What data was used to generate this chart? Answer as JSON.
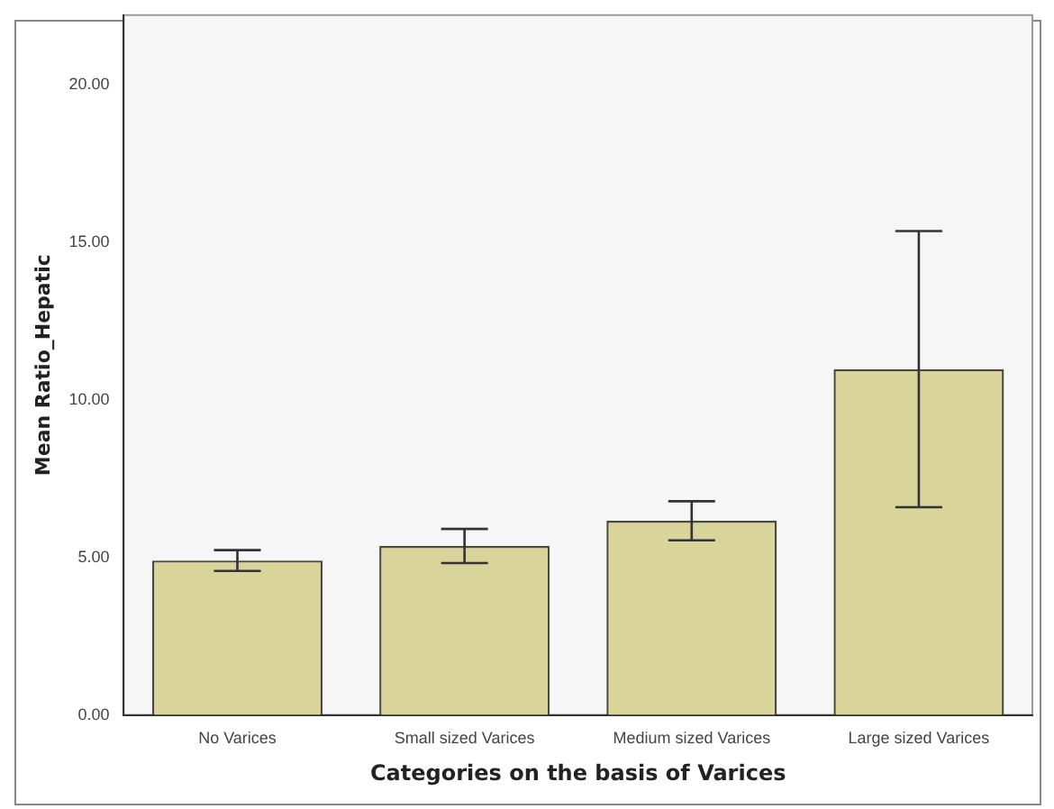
{
  "chart_data": {
    "type": "bar",
    "xlabel": "Categories on the basis of Varices",
    "ylabel": "Mean Ratio_Hepatic",
    "categories": [
      "No Varices",
      "Small sized Varices",
      "Medium sized Varices",
      "Large sized Varices"
    ],
    "values": [
      4.9,
      5.36,
      6.16,
      10.97
    ],
    "errors": [
      0.33,
      0.54,
      0.62,
      4.38
    ],
    "color": "#d8d49a",
    "ylim": [
      0,
      22.2
    ],
    "yticks": [
      {
        "value": 0,
        "label": "0.00"
      },
      {
        "value": 5,
        "label": "5.00"
      },
      {
        "value": 10,
        "label": "10.00"
      },
      {
        "value": 15,
        "label": "15.00"
      },
      {
        "value": 20,
        "label": "20.00"
      }
    ],
    "grid": false,
    "legend": false
  }
}
